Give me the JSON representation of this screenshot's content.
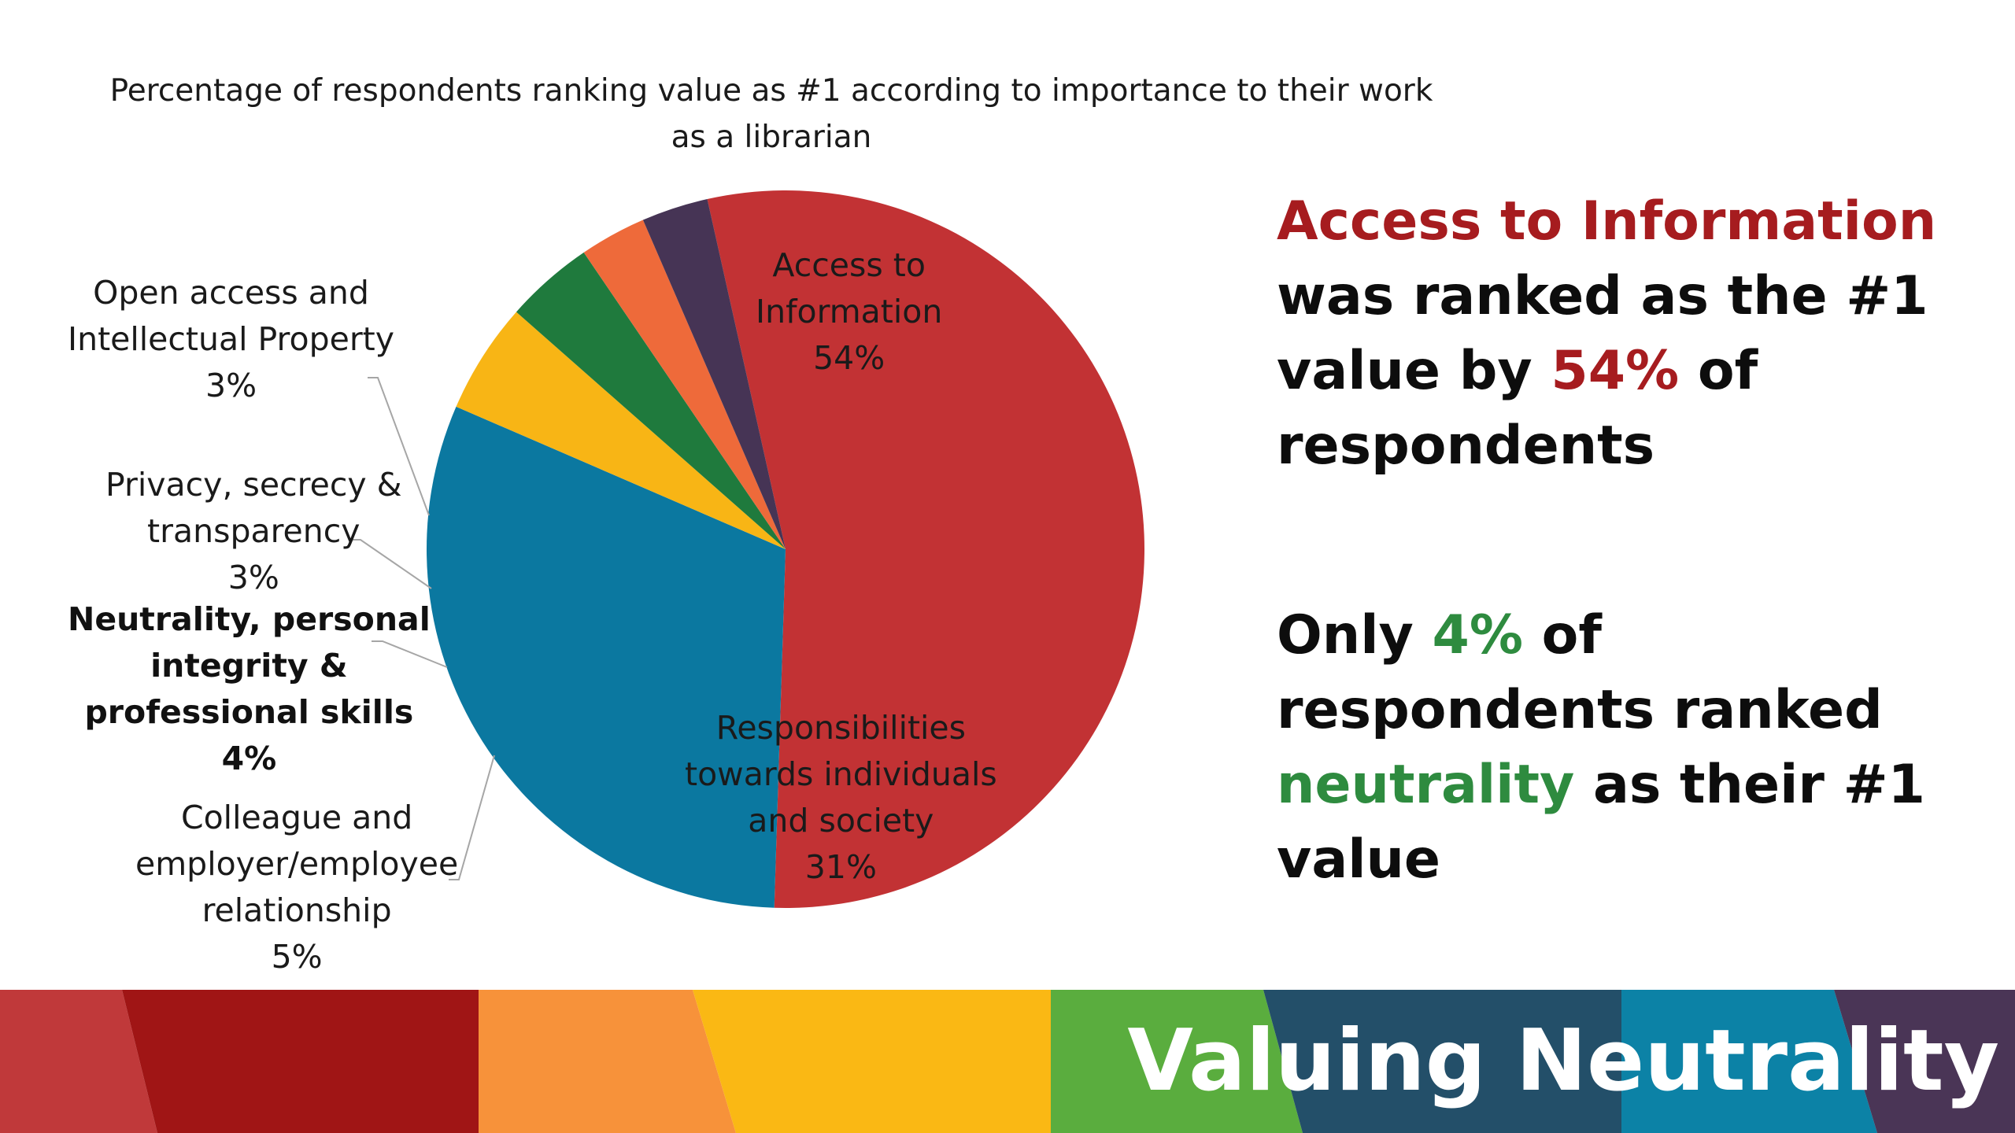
{
  "chart_data": {
    "type": "pie",
    "title": "Percentage of respondents ranking value as #1 according to importance to their work as a librarian",
    "slices": [
      {
        "label": "Access to Information",
        "value": 54,
        "value_label": "54%",
        "color": "#c23234"
      },
      {
        "label": "Responsibilities towards individuals and society",
        "value": 31,
        "value_label": "31%",
        "color": "#0b78a0"
      },
      {
        "label": "Colleague and employer/employee relationship",
        "value": 5,
        "value_label": "5%",
        "color": "#f8b515"
      },
      {
        "label": "Neutrality, personal integrity & professional skills",
        "value": 4,
        "value_label": "4%",
        "color": "#1f7a3d"
      },
      {
        "label": "Privacy, secrecy & transparency",
        "value": 3,
        "value_label": "3%",
        "color": "#ee6a3a"
      },
      {
        "label": "Open access and Intellectual Property",
        "value": 3,
        "value_label": "3%",
        "color": "#463455"
      }
    ]
  },
  "labels": {
    "access_line1": "Access to",
    "access_line2": "Information",
    "access_pct": "54%",
    "resp_line1": "Responsibilities",
    "resp_line2": "towards individuals",
    "resp_line3": "and society",
    "resp_pct": "31%",
    "open_line1": "Open access and",
    "open_line2": "Intellectual Property",
    "open_pct": "3%",
    "privacy_line1": "Privacy, secrecy &",
    "privacy_line2": "transparency",
    "privacy_pct": "3%",
    "neutral_line1": "Neutrality, personal",
    "neutral_line2": "integrity &",
    "neutral_line3": "professional skills",
    "neutral_pct": "4%",
    "colleague_line1": "Colleague and",
    "colleague_line2": "employer/employee",
    "colleague_line3": "relationship",
    "colleague_pct": "5%"
  },
  "callouts": {
    "first": {
      "highlight": "Access to Information",
      "line2": "was ranked as the #1",
      "line3_pre": "value by ",
      "line3_pct": "54%",
      "line3_post": " of",
      "line4": "respondents"
    },
    "second": {
      "line1_pre": "Only ",
      "line1_pct": "4%",
      "line1_post": " of",
      "line2": "respondents ranked",
      "line3_word": "neutrality",
      "line3_post": " as their #1",
      "line4": "value"
    }
  },
  "banner": {
    "title": "Valuing Neutrality"
  },
  "colors": {
    "accent_red": "#a61c1f",
    "accent_green": "#2e8b3f",
    "banner_red": "#c0393a",
    "banner_dark_red": "#a01515",
    "banner_orange": "#f7923a",
    "banner_yellow": "#fab814",
    "banner_green": "#5aad3e",
    "banner_slate": "#234f69",
    "banner_blue": "#0c82a6",
    "banner_purple": "#4a3556"
  }
}
